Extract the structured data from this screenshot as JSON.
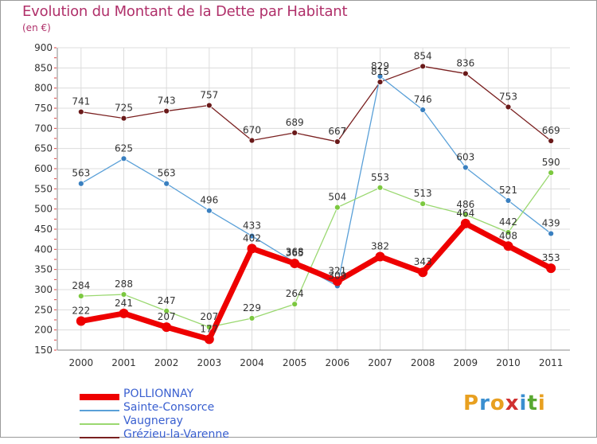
{
  "title": "Evolution du Montant de la Dette par Habitant",
  "unit_label": "(en €)",
  "logo": {
    "text": "Proxiti",
    "letters": [
      "P",
      "r",
      "o",
      "x",
      "i",
      "t",
      "i"
    ],
    "colors": [
      "#e8a020",
      "#3a8fd0",
      "#e8a020",
      "#d03030",
      "#3a8fd0",
      "#58a830",
      "#e8a020"
    ]
  },
  "chart_data": {
    "type": "line",
    "title": "Evolution du Montant de la Dette par Habitant",
    "ylabel": "(en €)",
    "xlabel": "",
    "ylim": [
      150,
      900
    ],
    "yticks": [
      150,
      200,
      250,
      300,
      350,
      400,
      450,
      500,
      550,
      600,
      650,
      700,
      750,
      800,
      850,
      900
    ],
    "grid": true,
    "legend_position": "bottom-left",
    "x": [
      "2000",
      "2001",
      "2002",
      "2003",
      "2004",
      "2005",
      "2006",
      "2007",
      "2008",
      "2009",
      "2010",
      "2011"
    ],
    "series": [
      {
        "name": "Grézieu-la-Varenne",
        "color": "#7a2020",
        "marker": "#6a1a1a",
        "width": 1.3,
        "values": [
          741,
          725,
          743,
          757,
          670,
          689,
          667,
          815,
          854,
          836,
          753,
          669
        ]
      },
      {
        "name": "Sainte-Consorce",
        "color": "#5aa0d8",
        "marker": "#3a80c0",
        "width": 1.3,
        "values": [
          563,
          625,
          563,
          496,
          433,
          368,
          309,
          829,
          746,
          603,
          521,
          439
        ]
      },
      {
        "name": "Vaugneray",
        "color": "#9ad870",
        "marker": "#7cc840",
        "width": 1.3,
        "values": [
          284,
          288,
          247,
          207,
          229,
          264,
          504,
          553,
          513,
          486,
          442,
          590
        ]
      },
      {
        "name": "POLLIONNAY",
        "color": "#ee0000",
        "marker": "#ee0000",
        "width": 7,
        "values": [
          222,
          241,
          207,
          177,
          402,
          365,
          321,
          382,
          343,
          464,
          408,
          353
        ]
      }
    ],
    "point_labels": [
      [
        741,
        725,
        743,
        757,
        670,
        689,
        667,
        815,
        854,
        836,
        753,
        669
      ],
      [
        563,
        625,
        563,
        496,
        433,
        368,
        309,
        829,
        746,
        603,
        521,
        439
      ],
      [
        284,
        288,
        247,
        207,
        229,
        264,
        504,
        553,
        513,
        486,
        442,
        590
      ],
      [
        222,
        241,
        207,
        177,
        402,
        365,
        321,
        382,
        343,
        464,
        408,
        353
      ]
    ]
  },
  "legend": [
    {
      "label": "POLLIONNAY",
      "color": "#ee0000",
      "thickness": 8
    },
    {
      "label": "Sainte-Consorce",
      "color": "#5aa0d8",
      "thickness": 2
    },
    {
      "label": "Vaugneray",
      "color": "#9ad870",
      "thickness": 2
    },
    {
      "label": "Grézieu-la-Varenne",
      "color": "#7a2020",
      "thickness": 2
    }
  ]
}
